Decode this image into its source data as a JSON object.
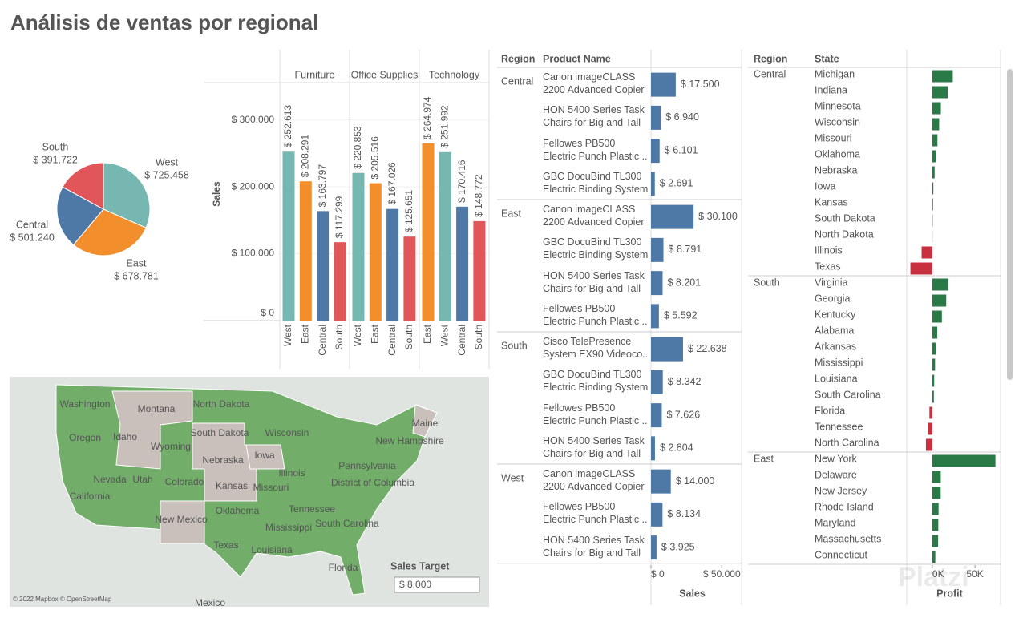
{
  "title": "Análisis de ventas por regional",
  "chart_data": [
    {
      "type": "pie",
      "categories": [
        "West",
        "East",
        "Central",
        "South"
      ],
      "values": [
        725458,
        678781,
        501240,
        391722
      ],
      "value_labels": [
        "$ 725.458",
        "$ 678.781",
        "$ 501.240",
        "$ 391.722"
      ],
      "colors": [
        "#76b7b2",
        "#f28e2b",
        "#4e79a7",
        "#e15759"
      ]
    },
    {
      "type": "bar",
      "y_label": "Sales",
      "ylim": [
        0,
        356000
      ],
      "yticks": [
        {
          "value": 0,
          "label": "$ 0"
        },
        {
          "value": 100000,
          "label": "$ 100.000"
        },
        {
          "value": 200000,
          "label": "$ 200.000"
        },
        {
          "value": 300000,
          "label": "$ 300.000"
        }
      ],
      "grid": true,
      "panels": [
        {
          "name": "Furniture",
          "categories": [
            "West",
            "East",
            "Central",
            "South"
          ],
          "values": [
            252613,
            208291,
            163797,
            117299
          ],
          "value_labels": [
            "$ 252.613",
            "$ 208.291",
            "$ 163.797",
            "$ 117.299"
          ],
          "colors": [
            "#76b7b2",
            "#f28e2b",
            "#4e79a7",
            "#e15759"
          ]
        },
        {
          "name": "Office Supplies",
          "categories": [
            "West",
            "East",
            "Central",
            "South"
          ],
          "values": [
            220853,
            205516,
            167026,
            125651
          ],
          "value_labels": [
            "$ 220.853",
            "$ 205.516",
            "$ 167.026",
            "$ 125.651"
          ],
          "colors": [
            "#76b7b2",
            "#f28e2b",
            "#4e79a7",
            "#e15759"
          ]
        },
        {
          "name": "Technology",
          "categories": [
            "East",
            "West",
            "Central",
            "South"
          ],
          "values": [
            264974,
            251992,
            170416,
            148772
          ],
          "value_labels": [
            "$ 264.974",
            "$ 251.992",
            "$ 170.416",
            "$ 148.772"
          ],
          "colors": [
            "#f28e2b",
            "#76b7b2",
            "#4e79a7",
            "#e15759"
          ]
        }
      ]
    },
    {
      "type": "bar",
      "orientation": "horizontal",
      "headers": [
        "Region",
        "Product Name"
      ],
      "x_label": "Sales",
      "xlim": [
        0,
        64000
      ],
      "xticks": [
        {
          "value": 0,
          "label": "$ 0"
        },
        {
          "value": 50000,
          "label": "$ 50.000"
        }
      ],
      "color": "#4e79a7",
      "groups": [
        {
          "name": "Central",
          "categories": [
            "Canon imageCLASS\n2200 Advanced Copier",
            "HON 5400 Series Task\nChairs for Big and Tall",
            "Fellowes PB500\nElectric Punch Plastic ..",
            "GBC DocuBind TL300\nElectric Binding System"
          ],
          "values": [
            17500,
            6940,
            6101,
            2691
          ],
          "value_labels": [
            "$ 17.500",
            "$ 6.940",
            "$ 6.101",
            "$ 2.691"
          ]
        },
        {
          "name": "East",
          "categories": [
            "Canon imageCLASS\n2200 Advanced Copier",
            "GBC DocuBind TL300\nElectric Binding System",
            "HON 5400 Series Task\nChairs for Big and Tall",
            "Fellowes PB500\nElectric Punch Plastic .."
          ],
          "values": [
            30100,
            8791,
            8201,
            5592
          ],
          "value_labels": [
            "$ 30.100",
            "$ 8.791",
            "$ 8.201",
            "$ 5.592"
          ]
        },
        {
          "name": "South",
          "categories": [
            "Cisco TelePresence\nSystem EX90 Videoco..",
            "GBC DocuBind TL300\nElectric Binding System",
            "Fellowes PB500\nElectric Punch Plastic ..",
            "HON 5400 Series Task\nChairs for Big and Tall"
          ],
          "values": [
            22638,
            8342,
            7626,
            2804
          ],
          "value_labels": [
            "$ 22.638",
            "$ 8.342",
            "$ 7.626",
            "$ 2.804"
          ]
        },
        {
          "name": "West",
          "categories": [
            "Canon imageCLASS\n2200 Advanced Copier",
            "Fellowes PB500\nElectric Punch Plastic ..",
            "HON 5400 Series Task\nChairs for Big and Tall"
          ],
          "values": [
            14000,
            8134,
            3925
          ],
          "value_labels": [
            "$ 14.000",
            "$ 8.134",
            "$ 3.925"
          ]
        }
      ]
    },
    {
      "type": "bar",
      "orientation": "horizontal",
      "headers": [
        "Region",
        "State"
      ],
      "x_label": "Profit",
      "xlim": [
        -30000,
        80000
      ],
      "xticks": [
        {
          "value": 0,
          "label": "0K"
        },
        {
          "value": 50000,
          "label": "50K"
        }
      ],
      "positive_color": "#2a7a48",
      "negative_color": "#c8303f",
      "groups": [
        {
          "name": "Central",
          "categories": [
            "Michigan",
            "Indiana",
            "Minnesota",
            "Wisconsin",
            "Missouri",
            "Oklahoma",
            "Nebraska",
            "Iowa",
            "Kansas",
            "South Dakota",
            "North Dakota",
            "Illinois",
            "Texas"
          ],
          "values": [
            24000,
            18000,
            10000,
            8000,
            6000,
            4500,
            2700,
            1200,
            800,
            400,
            200,
            -12600,
            -25700
          ]
        },
        {
          "name": "South",
          "categories": [
            "Virginia",
            "Georgia",
            "Kentucky",
            "Alabama",
            "Arkansas",
            "Mississippi",
            "Louisiana",
            "South Carolina",
            "Florida",
            "Tennessee",
            "North Carolina"
          ],
          "values": [
            18600,
            16300,
            11200,
            5800,
            4000,
            3200,
            2200,
            1800,
            -3400,
            -5300,
            -7500
          ]
        },
        {
          "name": "East",
          "categories": [
            "New York",
            "Delaware",
            "New Jersey",
            "Rhode Island",
            "Maryland",
            "Massachusetts",
            "Connecticut"
          ],
          "values": [
            74000,
            9900,
            9800,
            7300,
            7000,
            6800,
            3500
          ]
        }
      ]
    }
  ],
  "map": {
    "labels": [
      "Washington",
      "Montana",
      "North Dakota",
      "Oregon",
      "Idaho",
      "Wyoming",
      "South Dakota",
      "Wisconsin",
      "Maine",
      "New Hampshire",
      "Nebraska",
      "Iowa",
      "Illinois",
      "Pennsylvania",
      "Nevada",
      "Utah",
      "Colorado",
      "Kansas",
      "Missouri",
      "District of Columbia",
      "California",
      "Oklahoma",
      "Tennessee",
      "New Mexico",
      "Mississippi",
      "South Carolina",
      "Texas",
      "Louisiana",
      "Florida"
    ],
    "country_label": "Mexico",
    "attribution": "© 2022 Mapbox © OpenStreetMap"
  },
  "sales_target": {
    "label": "Sales Target",
    "value": "$ 8.000"
  },
  "watermark": "Platzi"
}
